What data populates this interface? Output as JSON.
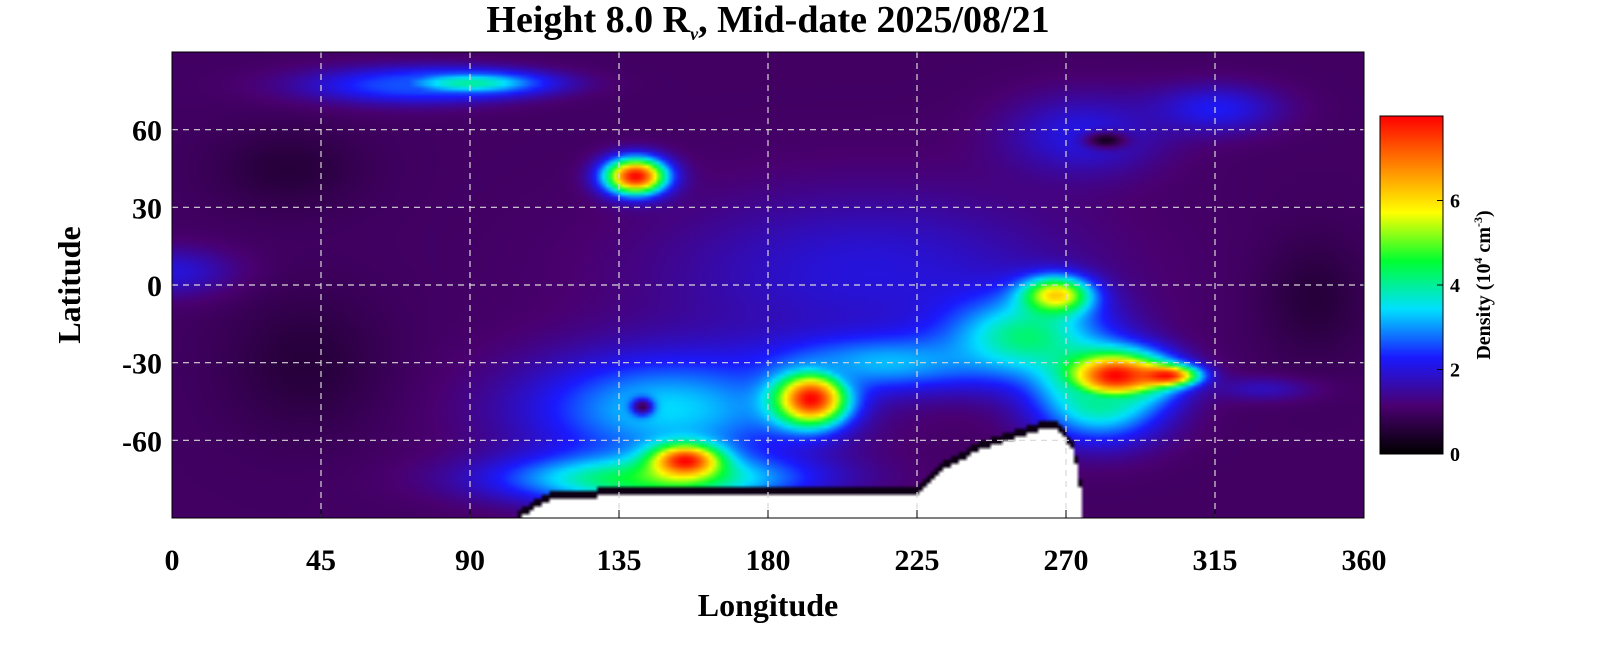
{
  "chart_data": {
    "type": "heatmap",
    "title": {
      "prefix": "Height 8.0 R",
      "sub": "ν",
      "suffix": ", Mid-date 2025/08/21"
    },
    "xlabel": "Longitude",
    "ylabel": "Latitude",
    "xlim": [
      0,
      360
    ],
    "ylim": [
      -90,
      90
    ],
    "x_ticks": [
      0,
      45,
      90,
      135,
      180,
      225,
      270,
      315,
      360
    ],
    "y_ticks": [
      60,
      30,
      0,
      -30,
      -60
    ],
    "y_tick_labels": [
      "60",
      "30",
      "0",
      "-30",
      "-60"
    ],
    "grid": true,
    "colorbar": {
      "label_prefix": "Density (10",
      "label_exp1": "4",
      "label_mid": " cm",
      "label_exp2": "-3",
      "label_suffix": ")",
      "range": [
        0,
        8
      ],
      "ticks": [
        0,
        2,
        4,
        6
      ],
      "colors": [
        "#000000",
        "#4a0070",
        "#1a1aff",
        "#00e0ff",
        "#00ff30",
        "#ffff00",
        "#ff8000",
        "#ff0000"
      ]
    },
    "background_level": 1.0,
    "features": [
      {
        "kind": "blob",
        "lon": 90,
        "lat": 78,
        "rlon": 30,
        "rlat": 6,
        "value": 4.0
      },
      {
        "kind": "blob",
        "lon": 70,
        "lat": 77,
        "rlon": 40,
        "rlat": 9,
        "value": 2.6
      },
      {
        "kind": "blob",
        "lon": 140,
        "lat": 42,
        "rlon": 12,
        "rlat": 9,
        "value": 8.0
      },
      {
        "kind": "blob",
        "lon": 210,
        "lat": 5,
        "rlon": 80,
        "rlat": 40,
        "value": 2.0
      },
      {
        "kind": "blob",
        "lon": 0,
        "lat": 5,
        "rlon": 25,
        "rlat": 12,
        "value": 2.0
      },
      {
        "kind": "blob",
        "lon": 275,
        "lat": 58,
        "rlon": 30,
        "rlat": 20,
        "value": 2.1
      },
      {
        "kind": "blob",
        "lon": 315,
        "lat": 68,
        "rlon": 25,
        "rlat": 12,
        "value": 2.2
      },
      {
        "kind": "blob",
        "lon": 150,
        "lat": -48,
        "rlon": 55,
        "rlat": 28,
        "value": 3.4
      },
      {
        "kind": "blob",
        "lon": 145,
        "lat": -75,
        "rlon": 55,
        "rlat": 12,
        "value": 4.6
      },
      {
        "kind": "blob",
        "lon": 155,
        "lat": -68,
        "rlon": 13,
        "rlat": 8,
        "value": 8.0
      },
      {
        "kind": "blob",
        "lon": 193,
        "lat": -44,
        "rlon": 14,
        "rlat": 13,
        "value": 8.0
      },
      {
        "kind": "blob",
        "lon": 215,
        "lat": -30,
        "rlon": 40,
        "rlat": 14,
        "value": 3.2
      },
      {
        "kind": "blob",
        "lon": 258,
        "lat": -20,
        "rlon": 30,
        "rlat": 20,
        "value": 4.2
      },
      {
        "kind": "blob",
        "lon": 267,
        "lat": -4,
        "rlon": 13,
        "rlat": 9,
        "value": 6.2
      },
      {
        "kind": "blob",
        "lon": 285,
        "lat": -35,
        "rlon": 20,
        "rlat": 12,
        "value": 8.0
      },
      {
        "kind": "blob",
        "lon": 300,
        "lat": -35,
        "rlon": 12,
        "rlat": 5,
        "value": 8.0
      },
      {
        "kind": "blob",
        "lon": 280,
        "lat": -45,
        "rlon": 25,
        "rlat": 20,
        "value": 4.0
      },
      {
        "kind": "blob",
        "lon": 330,
        "lat": -40,
        "rlon": 20,
        "rlat": 6,
        "value": 1.8
      },
      {
        "kind": "dark",
        "lon": 35,
        "lat": 45,
        "rlon": 28,
        "rlat": 20,
        "value": 0.6
      },
      {
        "kind": "dark",
        "lon": 40,
        "lat": -30,
        "rlon": 30,
        "rlat": 35,
        "value": 0.6
      },
      {
        "kind": "dark",
        "lon": 345,
        "lat": -5,
        "rlon": 20,
        "rlat": 30,
        "value": 0.6
      },
      {
        "kind": "dark",
        "lon": 282,
        "lat": 56,
        "rlon": 8,
        "rlat": 4,
        "value": 0.3
      },
      {
        "kind": "dark",
        "lon": 142,
        "lat": -47,
        "rlon": 4,
        "rlat": 4,
        "value": 0.8
      }
    ],
    "masked_regions": [
      {
        "lon_points": [
          105,
          115,
          170,
          225,
          232,
          245,
          262,
          268,
          272,
          274,
          275
        ],
        "lat_points": [
          -90,
          -82,
          -81,
          -81,
          -72,
          -63,
          -56,
          -56,
          -64,
          -75,
          -90
        ],
        "value": "no data"
      }
    ]
  }
}
